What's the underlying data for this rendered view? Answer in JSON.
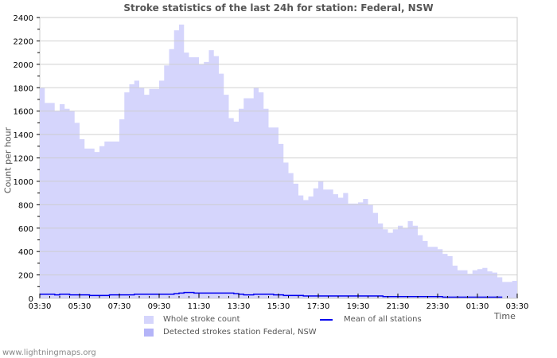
{
  "chart_data": {
    "type": "area",
    "title": "Stroke statistics of the last 24h for station: Federal, NSW",
    "xlabel": "Time",
    "ylabel": "Count per hour",
    "ylim": [
      0,
      2400
    ],
    "yticks": [
      0,
      200,
      400,
      600,
      800,
      1000,
      1200,
      1400,
      1600,
      1800,
      2000,
      2200,
      2400
    ],
    "xticks": [
      "03:30",
      "05:30",
      "07:30",
      "09:30",
      "11:30",
      "13:30",
      "15:30",
      "17:30",
      "19:30",
      "21:30",
      "23:30",
      "01:30",
      "03:30"
    ],
    "grid": true,
    "legend_position": "bottom",
    "interval_minutes": 15,
    "series": [
      {
        "name": "Whole stroke count",
        "color": "#d5d5fc",
        "values": [
          1800,
          1670,
          1670,
          1600,
          1660,
          1620,
          1600,
          1500,
          1360,
          1280,
          1280,
          1250,
          1300,
          1340,
          1340,
          1340,
          1530,
          1760,
          1830,
          1860,
          1800,
          1740,
          1790,
          1790,
          1860,
          1990,
          2130,
          2290,
          2340,
          2100,
          2060,
          2060,
          2000,
          2020,
          2120,
          2070,
          1920,
          1740,
          1540,
          1510,
          1620,
          1710,
          1710,
          1800,
          1760,
          1620,
          1460,
          1460,
          1320,
          1160,
          1070,
          980,
          880,
          840,
          870,
          940,
          1000,
          930,
          930,
          890,
          860,
          900,
          810,
          810,
          820,
          850,
          800,
          730,
          640,
          590,
          560,
          590,
          620,
          600,
          660,
          620,
          540,
          490,
          440,
          440,
          420,
          380,
          360,
          280,
          240,
          240,
          210,
          240,
          250,
          260,
          230,
          220,
          180,
          140,
          140,
          150
        ],
        "x_start": "03:30",
        "x_end": "03:30"
      },
      {
        "name": "Detected strokes station Federal, NSW",
        "color": "#b4b4f8",
        "values": []
      },
      {
        "name": "Mean of all stations",
        "color": "#0000ee",
        "type": "line",
        "values": [
          35,
          35,
          35,
          30,
          35,
          35,
          30,
          30,
          30,
          30,
          25,
          25,
          25,
          25,
          30,
          30,
          30,
          30,
          30,
          35,
          35,
          35,
          35,
          35,
          35,
          35,
          35,
          40,
          45,
          50,
          50,
          45,
          45,
          45,
          45,
          45,
          45,
          45,
          45,
          40,
          35,
          30,
          30,
          35,
          35,
          35,
          35,
          30,
          30,
          25,
          25,
          25,
          25,
          20,
          20,
          20,
          20,
          20,
          20,
          20,
          20,
          20,
          20,
          20,
          20,
          20,
          20,
          20,
          20,
          15,
          15,
          15,
          15,
          15,
          15,
          15,
          15,
          15,
          15,
          15,
          15,
          10,
          10,
          10,
          10,
          10,
          10,
          10,
          10,
          10,
          10,
          10,
          10
        ]
      }
    ]
  },
  "legend": {
    "whole": "Whole stroke count",
    "detected": "Detected strokes station Federal, NSW",
    "mean": "Mean of all stations"
  },
  "footer": "www.lightningmaps.org",
  "colors": {
    "whole": "#d5d5fc",
    "detected": "#b4b4f8",
    "mean": "#0000ee",
    "grid": "#cccccc"
  }
}
